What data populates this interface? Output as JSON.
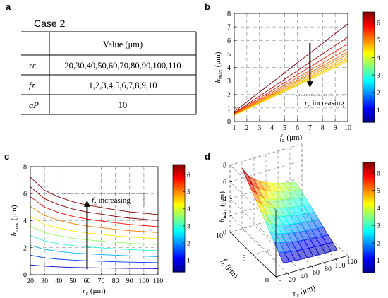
{
  "panels": {
    "a": "a",
    "b": "b",
    "c": "c",
    "d": "d"
  },
  "table": {
    "title": "Case 2",
    "header": "Value (μm)",
    "rows": [
      {
        "param": "rε",
        "value": "20,30,40,50,60,70,80,90,100,110"
      },
      {
        "param": "fz",
        "value": "1,2,3,4,5,6,7,8,9,10"
      },
      {
        "param": "aP",
        "value": "10"
      }
    ]
  },
  "colormap": [
    "#00008f",
    "#0000ff",
    "#0080ff",
    "#00ffff",
    "#80ff80",
    "#ffff00",
    "#ff8000",
    "#ff0000",
    "#800000"
  ],
  "colorbar_ticks": [
    "1",
    "2",
    "3",
    "4",
    "5",
    "6"
  ],
  "colorbar_range": [
    0.3,
    6.6
  ],
  "chart_data": [
    {
      "id": "b",
      "type": "line",
      "xlabel_main": "f",
      "xlabel_sub": "z",
      "xlabel_unit": "(μm)",
      "ylabel_main": "h",
      "ylabel_sub": "max",
      "ylabel_unit": "(μm)",
      "xlim": [
        1,
        10
      ],
      "ylim": [
        0,
        8
      ],
      "xticks": [
        "1",
        "2",
        "3",
        "4",
        "5",
        "6",
        "7",
        "8",
        "9",
        "10"
      ],
      "yticks": [
        "0",
        "1",
        "2",
        "3",
        "4",
        "5",
        "6",
        "7",
        "8"
      ],
      "x": [
        1,
        2,
        3,
        4,
        5,
        6,
        7,
        8,
        9,
        10
      ],
      "series": [
        {
          "values": [
            0.72,
            1.45,
            2.17,
            2.89,
            3.61,
            4.34,
            5.06,
            5.78,
            6.51,
            7.23
          ]
        },
        {
          "values": [
            0.63,
            1.25,
            1.88,
            2.5,
            3.13,
            3.75,
            4.38,
            5.0,
            5.63,
            6.25
          ]
        },
        {
          "values": [
            0.58,
            1.15,
            1.73,
            2.3,
            2.88,
            3.45,
            4.03,
            4.6,
            5.18,
            5.75
          ]
        },
        {
          "values": [
            0.54,
            1.08,
            1.62,
            2.16,
            2.7,
            3.24,
            3.78,
            4.32,
            4.86,
            5.4
          ]
        },
        {
          "values": [
            0.52,
            1.03,
            1.55,
            2.06,
            2.58,
            3.09,
            3.61,
            4.12,
            4.64,
            5.15
          ]
        },
        {
          "values": [
            0.5,
            1.0,
            1.49,
            1.99,
            2.49,
            2.99,
            3.48,
            3.98,
            4.48,
            4.98
          ]
        },
        {
          "values": [
            0.48,
            0.96,
            1.44,
            1.92,
            2.4,
            2.88,
            3.36,
            3.84,
            4.32,
            4.8
          ]
        },
        {
          "values": [
            0.47,
            0.93,
            1.4,
            1.86,
            2.33,
            2.79,
            3.26,
            3.72,
            4.19,
            4.65
          ]
        },
        {
          "values": [
            0.46,
            0.91,
            1.37,
            1.82,
            2.28,
            2.73,
            3.19,
            3.64,
            4.1,
            4.55
          ]
        },
        {
          "values": [
            0.45,
            0.89,
            1.34,
            1.78,
            2.23,
            2.67,
            3.12,
            3.56,
            4.01,
            4.45
          ]
        }
      ],
      "arrow": {
        "x": 7,
        "from": 5.8,
        "to": 2.5,
        "direction": "down"
      },
      "annotation": {
        "main": "r",
        "sub": "ε",
        "text": "increasing"
      }
    },
    {
      "id": "c",
      "type": "line",
      "xlabel_main": "r",
      "xlabel_sub": "ε",
      "xlabel_unit": "(μm)",
      "ylabel_main": "h",
      "ylabel_sub": "max",
      "ylabel_unit": "(μm)",
      "xlim": [
        20,
        110
      ],
      "ylim": [
        0,
        8
      ],
      "xticks": [
        "20",
        "30",
        "40",
        "50",
        "60",
        "70",
        "80",
        "90",
        "100",
        "110"
      ],
      "yticks": [
        "0",
        "2",
        "4",
        "6",
        "8"
      ],
      "x": [
        20,
        30,
        40,
        50,
        60,
        70,
        80,
        90,
        100,
        110
      ],
      "series": [
        {
          "values": [
            0.72,
            0.63,
            0.58,
            0.54,
            0.52,
            0.5,
            0.48,
            0.47,
            0.46,
            0.45
          ]
        },
        {
          "values": [
            1.45,
            1.25,
            1.15,
            1.08,
            1.03,
            1.0,
            0.96,
            0.93,
            0.91,
            0.89
          ]
        },
        {
          "values": [
            2.17,
            1.88,
            1.73,
            1.62,
            1.55,
            1.49,
            1.44,
            1.4,
            1.37,
            1.34
          ]
        },
        {
          "values": [
            2.89,
            2.5,
            2.3,
            2.16,
            2.06,
            1.99,
            1.92,
            1.86,
            1.82,
            1.78
          ]
        },
        {
          "values": [
            3.61,
            3.13,
            2.88,
            2.7,
            2.58,
            2.49,
            2.4,
            2.33,
            2.28,
            2.23
          ]
        },
        {
          "values": [
            4.34,
            3.75,
            3.45,
            3.24,
            3.09,
            2.99,
            2.88,
            2.79,
            2.73,
            2.67
          ]
        },
        {
          "values": [
            5.06,
            4.38,
            4.03,
            3.78,
            3.61,
            3.48,
            3.36,
            3.26,
            3.19,
            3.12
          ]
        },
        {
          "values": [
            5.78,
            5.0,
            4.6,
            4.32,
            4.12,
            3.98,
            3.84,
            3.72,
            3.64,
            3.56
          ]
        },
        {
          "values": [
            6.51,
            5.63,
            5.18,
            4.86,
            4.64,
            4.48,
            4.32,
            4.19,
            4.1,
            4.01
          ]
        },
        {
          "values": [
            7.23,
            6.25,
            5.75,
            5.4,
            5.15,
            4.98,
            4.8,
            4.65,
            4.55,
            4.45
          ]
        }
      ],
      "arrow": {
        "x": 60,
        "from": 0.4,
        "to": 5.5,
        "direction": "up"
      },
      "annotation": {
        "main": "f",
        "sub": "z",
        "text": "increasing"
      }
    },
    {
      "id": "d",
      "type": "surface",
      "xlabel_main": "r",
      "xlabel_sub": "ε",
      "xlabel_unit": "(μm)",
      "ylabel_main": "f",
      "ylabel_sub": "z",
      "ylabel_unit": "(μm)",
      "zlabel_main": "h",
      "zlabel_sub": "max",
      "zlabel_unit": "(μm)",
      "xlim": [
        0,
        120
      ],
      "ylim": [
        0,
        10
      ],
      "zlim": [
        0,
        8
      ],
      "xticks": [
        "0",
        "20",
        "40",
        "60",
        "80",
        "100",
        "120"
      ],
      "yticks": [
        "0",
        "5",
        "10"
      ],
      "zticks": [
        "0",
        "2",
        "4",
        "6",
        "8"
      ],
      "x": [
        20,
        30,
        40,
        50,
        60,
        70,
        80,
        90,
        100,
        110
      ],
      "y": [
        1,
        2,
        3,
        4,
        5,
        6,
        7,
        8,
        9,
        10
      ]
    }
  ]
}
